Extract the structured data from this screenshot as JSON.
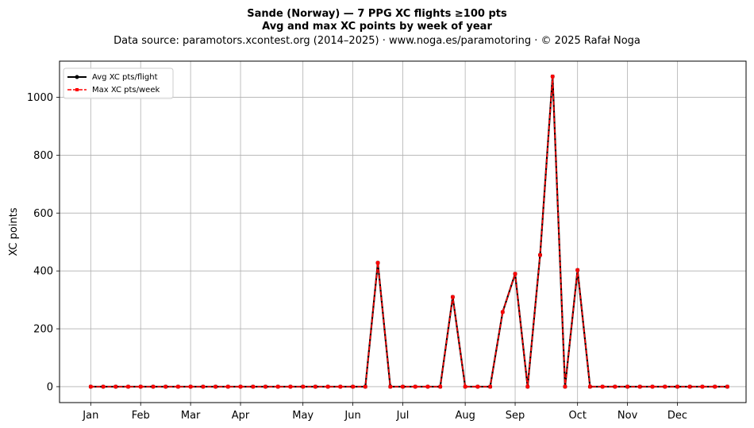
{
  "chart_data": {
    "type": "line",
    "title_line1": "Sande (Norway)  —  7 PPG XC flights ≥100 pts",
    "title_line2": "Avg and max XC points by week of year",
    "subtitle": "Data source: paramotors.xcontest.org (2014–2025)  ·  www.noga.es/paramotoring  ·  © 2025 Rafał Noga",
    "xlabel": "",
    "ylabel": "XC points",
    "grid": true,
    "legend_placement": "top-left",
    "x_range": [
      -1.5,
      53.5
    ],
    "ylim": [
      -55,
      1125
    ],
    "x_ticks": [
      {
        "label": "Jan",
        "week": 1
      },
      {
        "label": "Feb",
        "week": 5
      },
      {
        "label": "Mar",
        "week": 9
      },
      {
        "label": "Apr",
        "week": 13
      },
      {
        "label": "May",
        "week": 18
      },
      {
        "label": "Jun",
        "week": 22
      },
      {
        "label": "Jul",
        "week": 26
      },
      {
        "label": "Aug",
        "week": 31
      },
      {
        "label": "Sep",
        "week": 35
      },
      {
        "label": "Oct",
        "week": 40
      },
      {
        "label": "Nov",
        "week": 44
      },
      {
        "label": "Dec",
        "week": 48
      }
    ],
    "y_ticks": [
      0,
      200,
      400,
      600,
      800,
      1000
    ],
    "weeks": [
      1,
      2,
      3,
      4,
      5,
      6,
      7,
      8,
      9,
      10,
      11,
      12,
      13,
      14,
      15,
      16,
      17,
      18,
      19,
      20,
      21,
      22,
      23,
      24,
      25,
      26,
      27,
      28,
      29,
      30,
      31,
      32,
      33,
      34,
      35,
      36,
      37,
      38,
      39,
      40,
      41,
      42,
      43,
      44,
      45,
      46,
      47,
      48,
      49,
      50,
      51,
      52
    ],
    "series": [
      {
        "name": "Avg XC pts/flight",
        "color": "#000000",
        "values": [
          0,
          0,
          0,
          0,
          0,
          0,
          0,
          0,
          0,
          0,
          0,
          0,
          0,
          0,
          0,
          0,
          0,
          0,
          0,
          0,
          0,
          0,
          0,
          428,
          0,
          0,
          0,
          0,
          0,
          310,
          0,
          0,
          0,
          258,
          390,
          0,
          455,
          1072,
          0,
          403,
          0,
          0,
          0,
          0,
          0,
          0,
          0,
          0,
          0,
          0,
          0,
          0
        ]
      },
      {
        "name": "Max XC pts/week",
        "color": "#ff0000",
        "values": [
          0,
          0,
          0,
          0,
          0,
          0,
          0,
          0,
          0,
          0,
          0,
          0,
          0,
          0,
          0,
          0,
          0,
          0,
          0,
          0,
          0,
          0,
          0,
          428,
          0,
          0,
          0,
          0,
          0,
          310,
          0,
          0,
          0,
          258,
          390,
          0,
          455,
          1072,
          0,
          403,
          0,
          0,
          0,
          0,
          0,
          0,
          0,
          0,
          0,
          0,
          0,
          0
        ]
      }
    ]
  }
}
